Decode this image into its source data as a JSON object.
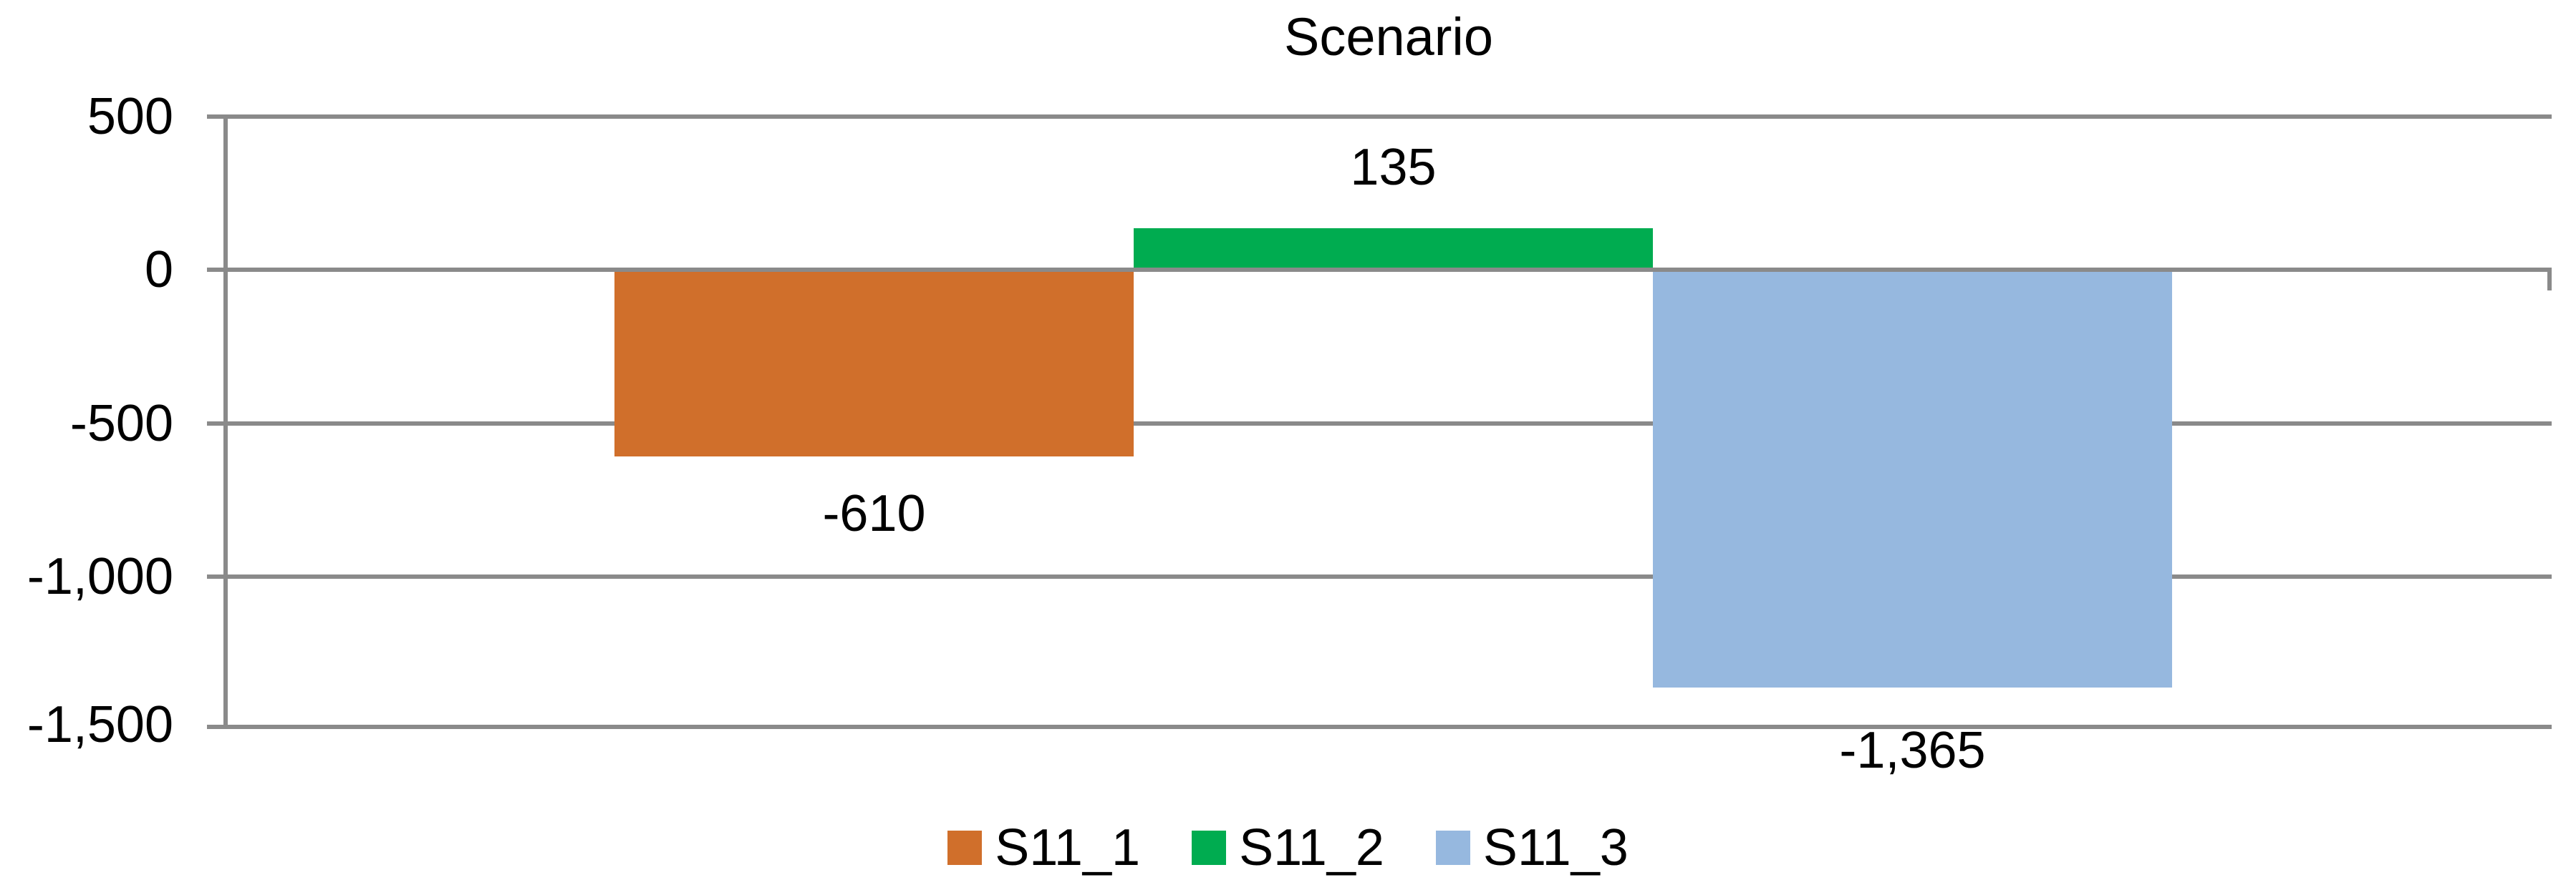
{
  "chart_data": {
    "type": "bar",
    "title": "Scenario",
    "categories": [
      "Scenario"
    ],
    "series": [
      {
        "name": "S11_1",
        "values": [
          -610
        ],
        "color": "#D06F2B",
        "data_label": "-610"
      },
      {
        "name": "S11_2",
        "values": [
          135
        ],
        "color": "#00AC50",
        "data_label": "135"
      },
      {
        "name": "S11_3",
        "values": [
          -1365
        ],
        "color": "#96B8DF",
        "data_label": "-1,365"
      }
    ],
    "ylim": [
      -1500,
      500
    ],
    "y_ticks": [
      500,
      0,
      -500,
      -1000,
      -1500
    ],
    "y_axis": {
      "tick_labels": [
        "500",
        "0",
        "-500",
        "-1,000",
        "-1,500"
      ]
    },
    "grid": true,
    "data_labels_position": "outside-end",
    "legend_position": "bottom"
  },
  "colors": {
    "gridline": "#8A8A8A",
    "axis_line": "#8A8A8A",
    "text": "#000000",
    "background": "#FFFFFF"
  }
}
